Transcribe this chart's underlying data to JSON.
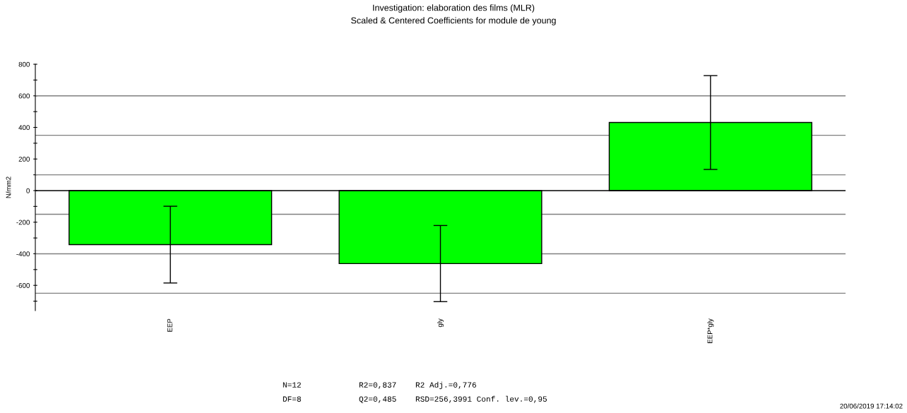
{
  "chart_data": {
    "type": "bar",
    "title": "Investigation: elaboration des films (MLR)",
    "subtitle": "Scaled & Centered Coefficients for module de young",
    "ylabel": "N/mm2",
    "categories": [
      "EEP",
      "gly",
      "EEP*gly"
    ],
    "values": [
      -342,
      -462,
      431
    ],
    "errors": [
      243,
      241,
      297
    ],
    "color": "#00ff00",
    "ylim": [
      -760,
      800
    ],
    "yticks": [
      800,
      {
        "value": 700,
        "label": null
      },
      600,
      {
        "value": 500,
        "label": null
      },
      400,
      {
        "value": 300,
        "label": null
      },
      200,
      {
        "value": 100,
        "label": null
      },
      0,
      {
        "value": -100,
        "label": null
      },
      -200,
      {
        "value": -300,
        "label": null
      },
      -400,
      {
        "value": -500,
        "label": null
      },
      -600,
      {
        "value": -700,
        "label": null
      }
    ],
    "ref_lines": [
      {
        "axis": "y",
        "value": 600,
        "color": "#808080"
      },
      {
        "axis": "y",
        "value": 350,
        "color": "#808080"
      },
      {
        "axis": "y",
        "value": 100,
        "color": "#808080"
      },
      {
        "axis": "y",
        "value": -150,
        "color": "#808080"
      },
      {
        "axis": "y",
        "value": -400,
        "color": "#808080"
      },
      {
        "axis": "y",
        "value": -650,
        "color": "#808080"
      },
      {
        "axis": "y",
        "value": 0,
        "color": "#000000"
      }
    ],
    "annotations": [
      "N=12",
      "R2=0,837",
      "R2 Adj.=0,776",
      "DF=8",
      "Q2=0,485",
      "RSD=256,3991 Conf. lev.=0,95",
      "20/06/2019 17:14:02"
    ]
  }
}
